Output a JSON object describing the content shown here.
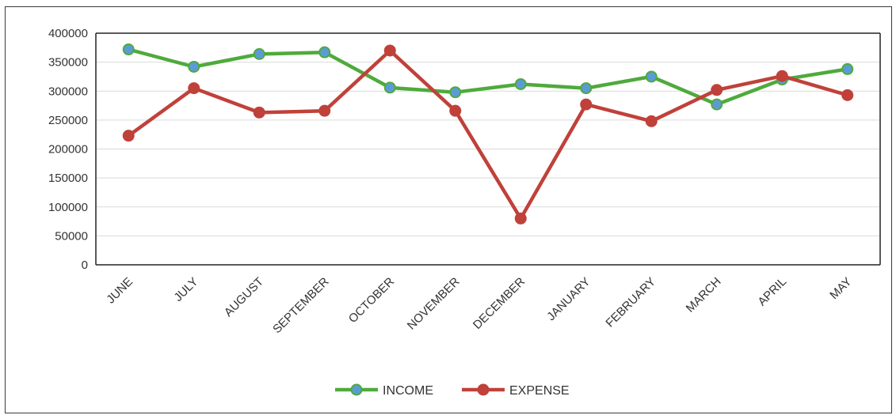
{
  "chart_data": {
    "type": "line",
    "title": "",
    "xlabel": "",
    "ylabel": "",
    "categories": [
      "JUNE",
      "JULY",
      "AUGUST",
      "SEPTEMBER",
      "OCTOBER",
      "NOVEMBER",
      "DECEMBER",
      "JANUARY",
      "FEBRUARY",
      "MARCH",
      "APRIL",
      "MAY"
    ],
    "ylim": [
      0,
      400000
    ],
    "yticks": [
      "0",
      "50000",
      "100000",
      "150000",
      "200000",
      "250000",
      "300000",
      "350000",
      "400000"
    ],
    "grid": true,
    "legend_position": "bottom",
    "series": [
      {
        "name": "INCOME",
        "color": "#4faa3c",
        "marker_color": "#5b9bd5",
        "values": [
          372000,
          342000,
          364000,
          367000,
          306000,
          298000,
          312000,
          305000,
          325000,
          277000,
          320000,
          338000
        ]
      },
      {
        "name": "EXPENSE",
        "color": "#c0413a",
        "marker_color": "#c0413a",
        "values": [
          223000,
          305000,
          263000,
          266000,
          370000,
          266000,
          80000,
          277000,
          248000,
          302000,
          326000,
          293000
        ]
      }
    ]
  }
}
